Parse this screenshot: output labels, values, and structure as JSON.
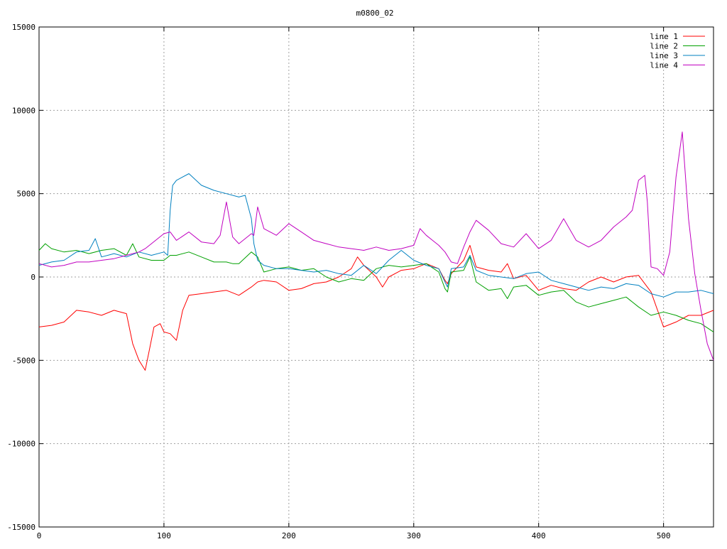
{
  "chart_data": {
    "type": "line",
    "title": "m0800_02",
    "xlabel": "",
    "ylabel": "",
    "xlim": [
      0,
      540
    ],
    "ylim": [
      -15000,
      15000
    ],
    "x_ticks": [
      0,
      100,
      200,
      300,
      400,
      500
    ],
    "y_ticks": [
      -15000,
      -10000,
      -5000,
      0,
      5000,
      10000,
      15000
    ],
    "grid": true,
    "legend_position": "top-right",
    "series": [
      {
        "name": "line 1",
        "color": "#ff0000",
        "x": [
          0,
          10,
          20,
          30,
          40,
          50,
          60,
          70,
          75,
          80,
          85,
          88,
          92,
          97,
          100,
          105,
          110,
          115,
          120,
          130,
          140,
          150,
          160,
          170,
          175,
          180,
          190,
          200,
          210,
          220,
          230,
          240,
          250,
          255,
          260,
          270,
          275,
          280,
          290,
          300,
          310,
          320,
          325,
          327,
          330,
          340,
          345,
          350,
          360,
          370,
          375,
          380,
          390,
          400,
          410,
          420,
          430,
          440,
          450,
          460,
          470,
          480,
          490,
          500,
          510,
          520,
          530,
          540
        ],
        "values": [
          -3000,
          -2900,
          -2700,
          -2000,
          -2100,
          -2300,
          -2000,
          -2200,
          -4000,
          -5000,
          -5600,
          -4500,
          -3000,
          -2800,
          -3300,
          -3400,
          -3800,
          -2000,
          -1100,
          -1000,
          -900,
          -800,
          -1100,
          -600,
          -300,
          -200,
          -300,
          -800,
          -700,
          -400,
          -300,
          0,
          500,
          1200,
          700,
          0,
          -600,
          0,
          400,
          500,
          800,
          500,
          -200,
          -400,
          200,
          1000,
          1900,
          600,
          400,
          300,
          800,
          -100,
          100,
          -800,
          -500,
          -700,
          -800,
          -300,
          0,
          -300,
          0,
          100,
          -900,
          -3000,
          -2700,
          -2300,
          -2300,
          -2000
        ]
      },
      {
        "name": "line 2",
        "color": "#00a000",
        "x": [
          0,
          5,
          10,
          20,
          30,
          40,
          50,
          60,
          70,
          75,
          80,
          90,
          100,
          105,
          110,
          120,
          130,
          140,
          150,
          155,
          160,
          170,
          175,
          180,
          190,
          200,
          210,
          220,
          230,
          240,
          250,
          260,
          270,
          280,
          290,
          300,
          310,
          320,
          325,
          327,
          330,
          340,
          345,
          350,
          360,
          370,
          375,
          380,
          390,
          400,
          410,
          420,
          430,
          440,
          450,
          460,
          470,
          480,
          490,
          500,
          510,
          520,
          530,
          540
        ],
        "values": [
          1600,
          2000,
          1700,
          1500,
          1600,
          1400,
          1600,
          1700,
          1300,
          2000,
          1200,
          1000,
          1000,
          1300,
          1300,
          1500,
          1200,
          900,
          900,
          800,
          800,
          1500,
          1200,
          300,
          500,
          600,
          400,
          500,
          0,
          -300,
          -100,
          -200,
          500,
          700,
          600,
          700,
          800,
          300,
          -700,
          -900,
          300,
          400,
          1200,
          -300,
          -800,
          -700,
          -1300,
          -600,
          -500,
          -1100,
          -900,
          -800,
          -1500,
          -1800,
          -1600,
          -1400,
          -1200,
          -1800,
          -2300,
          -2100,
          -2300,
          -2600,
          -2800,
          -3300
        ]
      },
      {
        "name": "line 3",
        "color": "#0080c0",
        "x": [
          0,
          10,
          20,
          30,
          40,
          45,
          50,
          60,
          70,
          80,
          90,
          100,
          103,
          105,
          107,
          110,
          120,
          130,
          140,
          150,
          160,
          165,
          170,
          172,
          175,
          180,
          190,
          200,
          210,
          220,
          230,
          240,
          250,
          260,
          270,
          280,
          290,
          300,
          310,
          320,
          325,
          327,
          330,
          340,
          345,
          350,
          360,
          370,
          380,
          390,
          400,
          410,
          420,
          430,
          440,
          450,
          460,
          470,
          480,
          490,
          500,
          510,
          520,
          530,
          540
        ],
        "values": [
          700,
          900,
          1000,
          1500,
          1600,
          2300,
          1200,
          1400,
          1200,
          1500,
          1300,
          1500,
          1300,
          4000,
          5500,
          5800,
          6200,
          5500,
          5200,
          5000,
          4800,
          4900,
          3500,
          2000,
          1000,
          700,
          500,
          500,
          400,
          300,
          400,
          200,
          100,
          700,
          200,
          1000,
          1600,
          1000,
          700,
          500,
          -300,
          -600,
          500,
          600,
          1300,
          400,
          100,
          0,
          -100,
          200,
          300,
          -200,
          -400,
          -600,
          -800,
          -600,
          -700,
          -400,
          -500,
          -1000,
          -1200,
          -900,
          -900,
          -800,
          -1000
        ]
      },
      {
        "name": "line 4",
        "color": "#c000c0",
        "x": [
          0,
          10,
          20,
          30,
          40,
          50,
          60,
          70,
          80,
          85,
          90,
          100,
          105,
          110,
          120,
          130,
          140,
          145,
          150,
          155,
          160,
          170,
          172,
          175,
          180,
          190,
          200,
          210,
          220,
          230,
          240,
          250,
          260,
          270,
          280,
          290,
          300,
          305,
          310,
          315,
          320,
          325,
          330,
          335,
          340,
          345,
          350,
          360,
          370,
          380,
          390,
          400,
          410,
          420,
          430,
          440,
          450,
          460,
          470,
          475,
          480,
          485,
          487,
          490,
          495,
          500,
          505,
          510,
          515,
          520,
          525,
          530,
          535,
          540
        ],
        "values": [
          800,
          600,
          700,
          900,
          900,
          1000,
          1100,
          1300,
          1500,
          1700,
          2000,
          2600,
          2700,
          2200,
          2700,
          2100,
          2000,
          2500,
          4500,
          2400,
          2000,
          2600,
          2500,
          4200,
          2900,
          2500,
          3200,
          2700,
          2200,
          2000,
          1800,
          1700,
          1600,
          1800,
          1600,
          1700,
          1900,
          2900,
          2500,
          2200,
          1900,
          1500,
          900,
          800,
          1800,
          2700,
          3400,
          2800,
          2000,
          1800,
          2600,
          1700,
          2200,
          3500,
          2200,
          1800,
          2200,
          3000,
          3600,
          4000,
          5800,
          6100,
          4500,
          600,
          500,
          100,
          1500,
          6000,
          8700,
          3500,
          200,
          -2000,
          -4000,
          -5000
        ]
      }
    ]
  }
}
